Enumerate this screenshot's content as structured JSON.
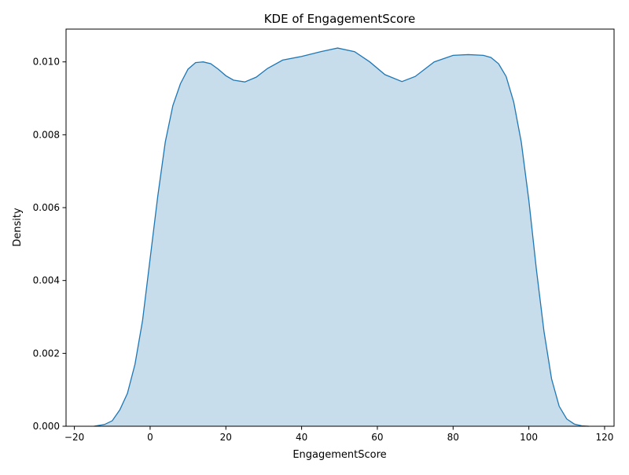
{
  "chart_data": {
    "type": "area",
    "title": "KDE of EngagementScore",
    "xlabel": "EngagementScore",
    "ylabel": "Density",
    "xlim": [
      -22.2,
      122.5
    ],
    "ylim": [
      0,
      0.0109
    ],
    "xticks": [
      -20,
      0,
      20,
      40,
      60,
      80,
      100,
      120
    ],
    "xtick_labels": [
      "−20",
      "0",
      "20",
      "40",
      "60",
      "80",
      "100",
      "120"
    ],
    "yticks": [
      0,
      0.002,
      0.004,
      0.006,
      0.008,
      0.01
    ],
    "ytick_labels": [
      "0.000",
      "0.002",
      "0.004",
      "0.006",
      "0.008",
      "0.010"
    ],
    "grid": false,
    "legend": "none",
    "colors": {
      "line": "#1f77b4",
      "fill": "#1f77b4",
      "fill_opacity": 0.25
    },
    "series": [
      {
        "x": [
          -14.8,
          -12,
          -10,
          -8,
          -6,
          -4,
          -2,
          0,
          2,
          4,
          6,
          8,
          10,
          12,
          14,
          16,
          18,
          20,
          22,
          25,
          28,
          31,
          35,
          40,
          45,
          49.5,
          54,
          58,
          62,
          66.5,
          70,
          75,
          80,
          84,
          88,
          90,
          92,
          94,
          96,
          98,
          100,
          102,
          104,
          106,
          108,
          110,
          112,
          114,
          115.8
        ],
        "y": [
          0.0,
          5e-05,
          0.00015,
          0.00045,
          0.0009,
          0.0017,
          0.0029,
          0.0046,
          0.0063,
          0.0078,
          0.0088,
          0.0094,
          0.0098,
          0.00998,
          0.01,
          0.00995,
          0.0098,
          0.00962,
          0.0095,
          0.00945,
          0.00958,
          0.00982,
          0.01005,
          0.01015,
          0.01028,
          0.01038,
          0.01028,
          0.01,
          0.00965,
          0.00946,
          0.0096,
          0.01,
          0.01018,
          0.0102,
          0.01018,
          0.01012,
          0.00995,
          0.0096,
          0.0089,
          0.0078,
          0.0062,
          0.0043,
          0.0026,
          0.0013,
          0.00055,
          0.0002,
          6e-05,
          1e-05,
          0.0
        ]
      }
    ]
  }
}
